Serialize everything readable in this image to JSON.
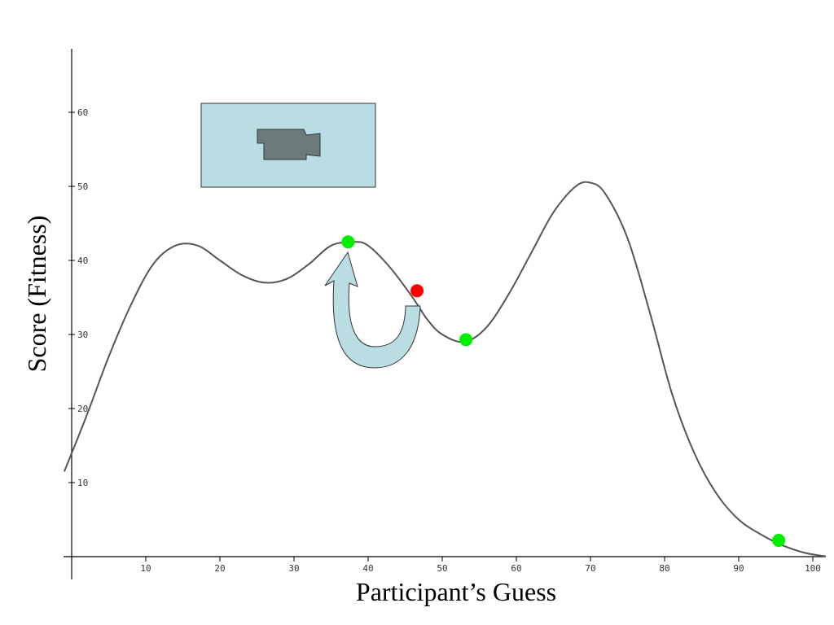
{
  "chart_data": {
    "type": "line",
    "xlabel": "Participant’s Guess",
    "ylabel": "Score (Fitness)",
    "xlim": [
      -1,
      102
    ],
    "ylim": [
      -3,
      68
    ],
    "x_ticks": [
      10,
      20,
      30,
      40,
      50,
      60,
      70,
      80,
      90,
      100
    ],
    "y_ticks": [
      10,
      20,
      30,
      40,
      50,
      60
    ],
    "series": [
      {
        "x": [
          -1,
          2,
          5,
          8,
          11,
          14,
          17,
          20,
          23,
          26,
          29,
          32,
          35,
          38,
          40,
          43,
          46,
          48,
          50,
          53,
          56,
          59,
          62,
          65,
          68,
          70,
          72,
          75,
          78,
          81,
          84,
          87,
          90,
          93,
          96,
          99,
          102
        ],
        "y": [
          11.5,
          19,
          27,
          34,
          39.5,
          42,
          42,
          40,
          38,
          37,
          37.5,
          39.5,
          42,
          42.5,
          42,
          39,
          35,
          32,
          30,
          29,
          31,
          35.5,
          41,
          46.5,
          50,
          50.5,
          49,
          43,
          33,
          22,
          14,
          8.5,
          5,
          3,
          1.5,
          0.5,
          0
        ]
      }
    ],
    "line_color": "#555555",
    "points": [
      {
        "x": 37.3,
        "y": 42.5,
        "color": "#00ee00"
      },
      {
        "x": 46.6,
        "y": 35.9,
        "color": "#ff0000"
      },
      {
        "x": 53.2,
        "y": 29.3,
        "color": "#00ee00"
      },
      {
        "x": 95.4,
        "y": 2.2,
        "color": "#00ee00"
      }
    ],
    "annotations": {
      "arrow": {
        "from": {
          "x": 46.6,
          "y": 35.9
        },
        "to": {
          "x": 37.3,
          "y": 42.5
        },
        "fill": "#b9dde2"
      },
      "camera_box": {
        "fill": "#b9dde2",
        "icon": "video-camera-icon",
        "icon_color": "#6b7b7b"
      }
    },
    "grid": false,
    "legend": "none"
  }
}
